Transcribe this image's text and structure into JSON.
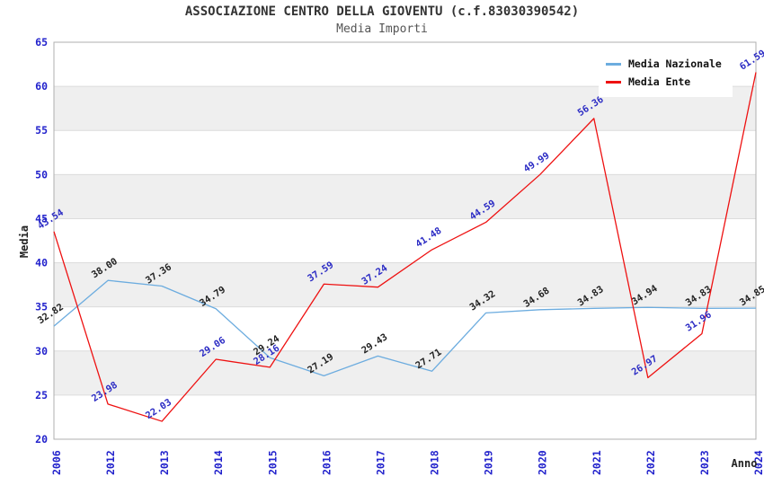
{
  "header": {
    "title": "ASSOCIAZIONE CENTRO DELLA GIOVENTU (c.f.83030390542)",
    "subtitle": "Media Importi"
  },
  "chart_data": {
    "type": "line",
    "title": "ASSOCIAZIONE CENTRO DELLA GIOVENTU (c.f.83030390542)",
    "subtitle": "Media Importi",
    "xlabel": "Anno",
    "ylabel": "Media",
    "categories": [
      "2006",
      "2012",
      "2013",
      "2014",
      "2015",
      "2016",
      "2017",
      "2018",
      "2019",
      "2020",
      "2021",
      "2022",
      "2023",
      "2024"
    ],
    "series": [
      {
        "name": "Media Nazionale",
        "color": "#6CACDF",
        "label_color": "#222222",
        "values": [
          32.82,
          38.0,
          37.36,
          34.79,
          29.24,
          27.19,
          29.43,
          27.71,
          34.32,
          34.68,
          34.83,
          34.94,
          34.83,
          34.85
        ]
      },
      {
        "name": "Media Ente",
        "color": "#EE1111",
        "label_color": "#2B2BC4",
        "values": [
          43.54,
          23.98,
          22.03,
          29.06,
          28.16,
          37.59,
          37.24,
          41.48,
          44.59,
          49.99,
          56.36,
          26.97,
          31.96,
          61.59
        ]
      }
    ],
    "ylim": [
      20,
      65
    ],
    "yticks": [
      20,
      25,
      30,
      35,
      40,
      45,
      50,
      55,
      60,
      65
    ],
    "bands": [
      [
        25,
        30
      ],
      [
        35,
        40
      ],
      [
        45,
        50
      ],
      [
        55,
        60
      ]
    ],
    "grid": true,
    "legend_position": "top-right",
    "colors": {
      "band": "#EFEFEF",
      "grid": "#DCDCDC",
      "frame": "#AFAFAF",
      "tick_label": "#2222CC",
      "title": "#333333",
      "subtitle": "#555555"
    }
  }
}
